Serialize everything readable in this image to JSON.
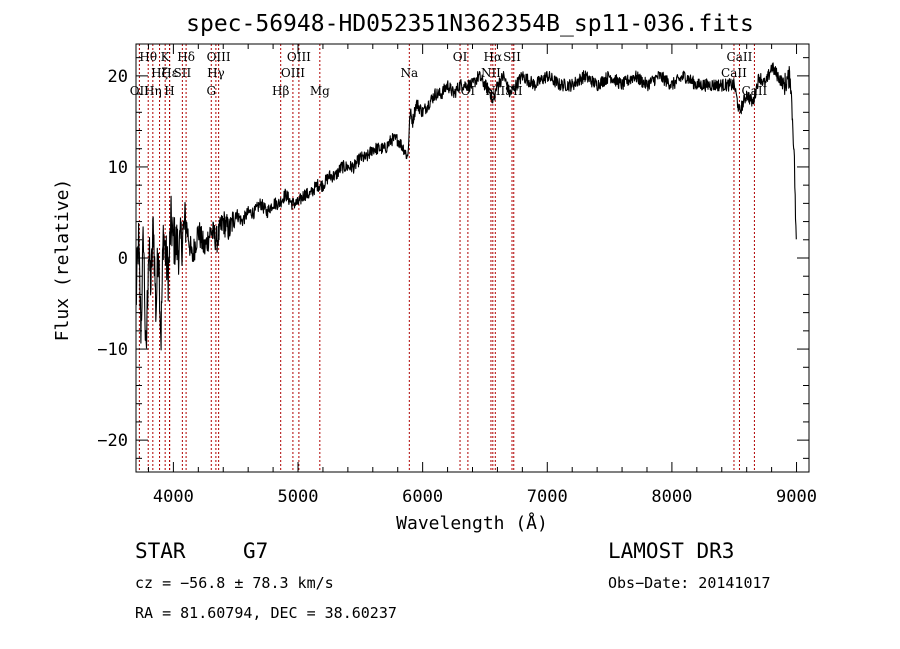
{
  "chart_data": {
    "type": "line",
    "title": "spec-56948-HD052351N362354B_sp11-036.fits",
    "xlabel": "Wavelength (Å)",
    "ylabel": "Flux (relative)",
    "xlim": [
      3700,
      9100
    ],
    "ylim": [
      -23.5,
      23.5
    ],
    "x_ticks": [
      4000,
      5000,
      6000,
      7000,
      8000,
      9000
    ],
    "x_tick_labels": [
      "4000",
      "5000",
      "6000",
      "7000",
      "8000",
      "9000"
    ],
    "y_ticks": [
      -20,
      -10,
      0,
      10,
      20
    ],
    "y_tick_labels": [
      "−20",
      "−10",
      "0",
      "10",
      "20"
    ],
    "series": [
      {
        "name": "flux",
        "x": [
          3700,
          3720,
          3740,
          3760,
          3780,
          3800,
          3820,
          3840,
          3860,
          3880,
          3900,
          3920,
          3940,
          3960,
          3980,
          4000,
          4050,
          4100,
          4150,
          4200,
          4250,
          4300,
          4350,
          4400,
          4450,
          4500,
          4550,
          4600,
          4650,
          4700,
          4750,
          4800,
          4850,
          4900,
          4950,
          5000,
          5050,
          5100,
          5150,
          5200,
          5250,
          5300,
          5350,
          5400,
          5450,
          5500,
          5550,
          5600,
          5650,
          5700,
          5750,
          5800,
          5850,
          5880,
          5900,
          5920,
          5950,
          6000,
          6050,
          6100,
          6150,
          6200,
          6250,
          6300,
          6350,
          6400,
          6450,
          6500,
          6550,
          6562,
          6600,
          6650,
          6700,
          6750,
          6800,
          6900,
          7000,
          7100,
          7200,
          7300,
          7400,
          7500,
          7600,
          7700,
          7800,
          7900,
          8000,
          8100,
          8200,
          8300,
          8400,
          8500,
          8542,
          8600,
          8650,
          8700,
          8750,
          8800,
          8850,
          8900,
          8950,
          8980,
          9000
        ],
        "y": [
          -5,
          2,
          -8,
          3,
          -12,
          1,
          -3,
          4,
          -6,
          2,
          -9,
          3,
          0,
          -2,
          4,
          2,
          1,
          4,
          0,
          3,
          1,
          3,
          2,
          4,
          3,
          5,
          4,
          5,
          5,
          6,
          5,
          6,
          6,
          7,
          6,
          6,
          7,
          7,
          8,
          8,
          9,
          9,
          10,
          10,
          10,
          11,
          11,
          12,
          12,
          12,
          13,
          13,
          12,
          11,
          16,
          15,
          17,
          16,
          17,
          18,
          18,
          19,
          18,
          19,
          19,
          19,
          20,
          19,
          18,
          17,
          19,
          20,
          18,
          19,
          20,
          19,
          20,
          19,
          19,
          20,
          19,
          20,
          19,
          20,
          19,
          20,
          19,
          20,
          19,
          19,
          19,
          19,
          16,
          18,
          17,
          20,
          19,
          21,
          20,
          19,
          20,
          12,
          0
        ]
      }
    ],
    "lines": [
      {
        "label": "Hθ",
        "wavelength": 3798,
        "row": 1
      },
      {
        "label": "Hη",
        "wavelength": 3835,
        "row": 3
      },
      {
        "label": "OII",
        "wavelength": 3727,
        "row": 3
      },
      {
        "label": "Hζ",
        "wavelength": 3889,
        "row": 2
      },
      {
        "label": "K",
        "wavelength": 3934,
        "row": 1
      },
      {
        "label": "H",
        "wavelength": 3969,
        "row": 3
      },
      {
        "label": "Hε",
        "wavelength": 3970,
        "row": 2
      },
      {
        "label": "SII",
        "wavelength": 4072,
        "row": 2
      },
      {
        "label": "Hδ",
        "wavelength": 4102,
        "row": 1
      },
      {
        "label": "G",
        "wavelength": 4304,
        "row": 3
      },
      {
        "label": "Hγ",
        "wavelength": 4341,
        "row": 2
      },
      {
        "label": "OIII",
        "wavelength": 4363,
        "row": 1
      },
      {
        "label": "Hβ",
        "wavelength": 4861,
        "row": 3
      },
      {
        "label": "OIII",
        "wavelength": 4959,
        "row": 2
      },
      {
        "label": "OIII",
        "wavelength": 5007,
        "row": 1
      },
      {
        "label": "Mg",
        "wavelength": 5175,
        "row": 3
      },
      {
        "label": "Na",
        "wavelength": 5893,
        "row": 2
      },
      {
        "label": "OI",
        "wavelength": 6300,
        "row": 1
      },
      {
        "label": "OI",
        "wavelength": 6363,
        "row": 3
      },
      {
        "label": "NII",
        "wavelength": 6548,
        "row": 2
      },
      {
        "label": "Hα",
        "wavelength": 6563,
        "row": 1
      },
      {
        "label": "NII",
        "wavelength": 6583,
        "row": 3
      },
      {
        "label": "SII",
        "wavelength": 6717,
        "row": 1
      },
      {
        "label": "SII",
        "wavelength": 6731,
        "row": 3
      },
      {
        "label": "CaII",
        "wavelength": 8498,
        "row": 2
      },
      {
        "label": "CaII",
        "wavelength": 8542,
        "row": 1
      },
      {
        "label": "CaII",
        "wavelength": 8662,
        "row": 3
      }
    ]
  },
  "info": {
    "class_label": "STAR",
    "subclass": "G7",
    "survey": "LAMOST DR3",
    "cz_text": "cz = −56.8 ± 78.3 km/s",
    "obs_date_text": "Obs−Date: 20141017",
    "coords_text": "RA =  81.60794, DEC =  38.60237"
  }
}
